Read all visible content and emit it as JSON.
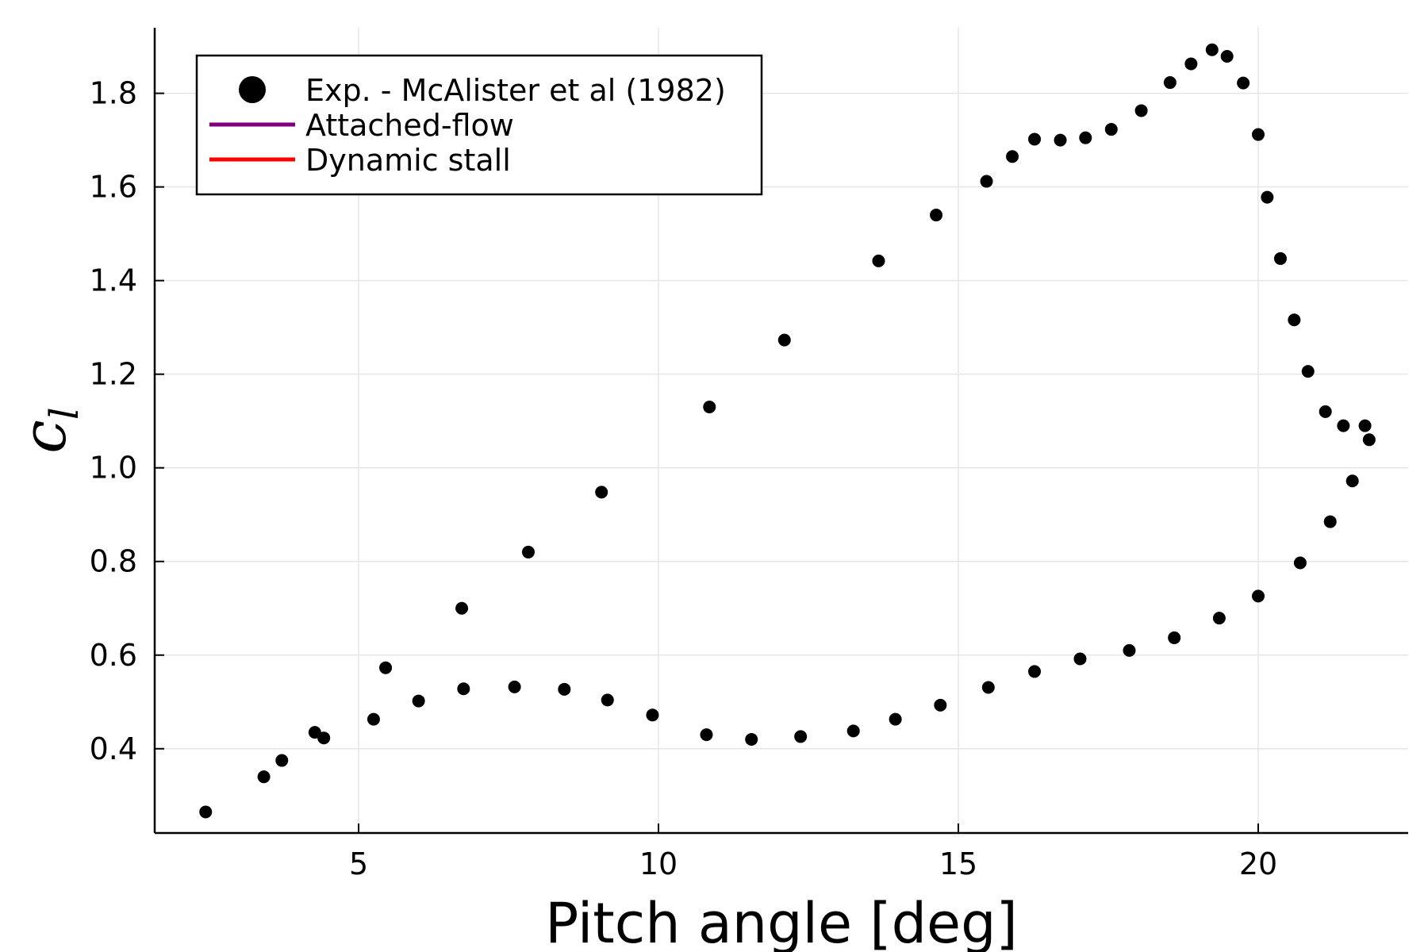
{
  "chart_data": {
    "type": "scatter",
    "title": "",
    "xlabel": "Pitch angle [deg]",
    "ylabel": {
      "base": "c",
      "subscript": "l"
    },
    "xlim": [
      1.6,
      22.5
    ],
    "ylim": [
      0.22,
      1.94
    ],
    "xticks": [
      5,
      10,
      15,
      20
    ],
    "xtick_labels": [
      "5",
      "10",
      "15",
      "20"
    ],
    "yticks": [
      0.4,
      0.6,
      0.8,
      1.0,
      1.2,
      1.4,
      1.6,
      1.8
    ],
    "ytick_labels": [
      "0.4",
      "0.6",
      "0.8",
      "1.0",
      "1.2",
      "1.4",
      "1.6",
      "1.8"
    ],
    "grid": true,
    "legend_position": "top-left",
    "series": [
      {
        "name": "Exp. - McAlister et al (1982)",
        "kind": "scatter",
        "color": "#000000",
        "points": [
          [
            2.45,
            0.265
          ],
          [
            3.42,
            0.34
          ],
          [
            3.72,
            0.375
          ],
          [
            4.27,
            0.435
          ],
          [
            4.42,
            0.423
          ],
          [
            5.25,
            0.463
          ],
          [
            5.45,
            0.573
          ],
          [
            6.0,
            0.502
          ],
          [
            6.72,
            0.7
          ],
          [
            6.75,
            0.528
          ],
          [
            7.6,
            0.532
          ],
          [
            7.83,
            0.82
          ],
          [
            8.43,
            0.527
          ],
          [
            9.05,
            0.948
          ],
          [
            9.15,
            0.504
          ],
          [
            9.9,
            0.472
          ],
          [
            10.8,
            0.43
          ],
          [
            10.85,
            1.13
          ],
          [
            11.55,
            0.42
          ],
          [
            12.1,
            1.273
          ],
          [
            12.37,
            0.426
          ],
          [
            13.25,
            0.438
          ],
          [
            13.67,
            1.442
          ],
          [
            13.95,
            0.463
          ],
          [
            14.63,
            1.54
          ],
          [
            14.7,
            0.493
          ],
          [
            15.47,
            1.612
          ],
          [
            15.5,
            0.531
          ],
          [
            15.9,
            1.665
          ],
          [
            16.27,
            1.702
          ],
          [
            16.27,
            0.565
          ],
          [
            16.7,
            1.7
          ],
          [
            17.03,
            0.592
          ],
          [
            17.12,
            1.705
          ],
          [
            17.55,
            1.723
          ],
          [
            17.85,
            0.61
          ],
          [
            18.05,
            1.763
          ],
          [
            18.53,
            1.823
          ],
          [
            18.6,
            0.637
          ],
          [
            18.88,
            1.863
          ],
          [
            19.23,
            1.893
          ],
          [
            19.35,
            0.679
          ],
          [
            19.48,
            1.879
          ],
          [
            19.75,
            1.822
          ],
          [
            20.0,
            1.712
          ],
          [
            20.0,
            0.726
          ],
          [
            20.15,
            1.578
          ],
          [
            20.37,
            1.447
          ],
          [
            20.6,
            1.316
          ],
          [
            20.7,
            0.797
          ],
          [
            20.83,
            1.206
          ],
          [
            21.12,
            1.12
          ],
          [
            21.2,
            0.885
          ],
          [
            21.42,
            1.09
          ],
          [
            21.57,
            0.972
          ],
          [
            21.78,
            1.09
          ],
          [
            21.85,
            1.06
          ]
        ]
      },
      {
        "name": "Attached-flow",
        "kind": "line",
        "color": "#7f007f",
        "points": []
      },
      {
        "name": "Dynamic stall",
        "kind": "line",
        "color": "#ff0000",
        "points": []
      }
    ]
  }
}
